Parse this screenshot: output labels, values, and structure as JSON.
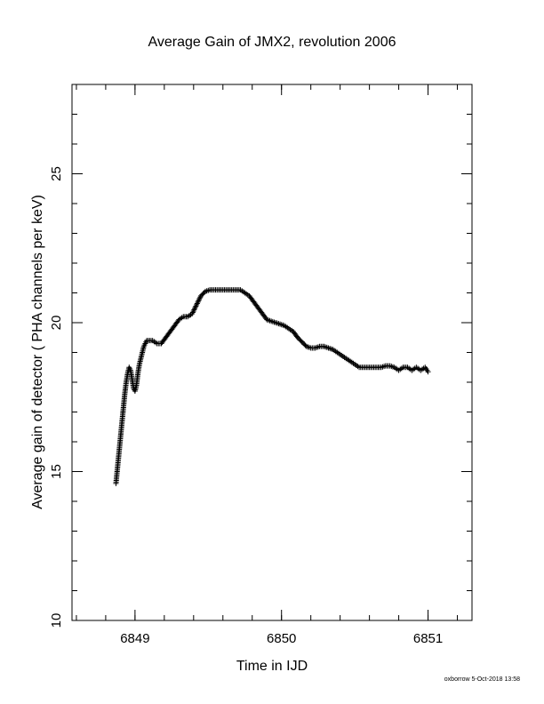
{
  "chart_data": {
    "type": "scatter",
    "title": "Average Gain of JMX2, revolution 2006",
    "xlabel": "Time in IJD",
    "ylabel": "Average gain of detector ( PHA channels per keV)",
    "xlim": [
      6848.57,
      6851.3
    ],
    "ylim": [
      10,
      28
    ],
    "x_ticks": [
      "6849",
      "6850",
      "6851"
    ],
    "y_ticks": [
      "10",
      "15",
      "20",
      "25"
    ],
    "x_minor_step": 0.2,
    "y_minor_step": 1,
    "marker": "plus",
    "grid": false,
    "series": [
      {
        "x": [
          6848.87,
          6848.88,
          6848.89,
          6848.9,
          6848.91,
          6848.92,
          6848.93,
          6848.94,
          6848.95,
          6848.96,
          6848.97,
          6848.98,
          6848.99,
          6849.0,
          6849.01,
          6849.02,
          6849.03,
          6849.04,
          6849.05,
          6849.06,
          6849.07,
          6849.08,
          6849.09,
          6849.1,
          6849.12,
          6849.15,
          6849.18,
          6849.21,
          6849.24,
          6849.27,
          6849.3,
          6849.33,
          6849.36,
          6849.39,
          6849.42,
          6849.45,
          6849.48,
          6849.51,
          6849.54,
          6849.57,
          6849.6,
          6849.63,
          6849.66,
          6849.69,
          6849.72,
          6849.75,
          6849.78,
          6849.81,
          6849.84,
          6849.87,
          6849.9,
          6849.93,
          6849.96,
          6849.99,
          6850.02,
          6850.05,
          6850.08,
          6850.11,
          6850.14,
          6850.17,
          6850.2,
          6850.23,
          6850.26,
          6850.29,
          6850.32,
          6850.35,
          6850.38,
          6850.41,
          6850.44,
          6850.47,
          6850.5,
          6850.53,
          6850.56,
          6850.59,
          6850.62,
          6850.65,
          6850.68,
          6850.71,
          6850.74,
          6850.77,
          6850.8,
          6850.83,
          6850.86,
          6850.89,
          6850.92,
          6850.95,
          6850.98,
          6851.0
        ],
        "y": [
          14.6,
          15.1,
          15.6,
          16.1,
          16.6,
          17.1,
          17.6,
          18.0,
          18.3,
          18.5,
          18.4,
          18.1,
          17.8,
          17.7,
          17.9,
          18.3,
          18.6,
          18.8,
          19.0,
          19.2,
          19.3,
          19.4,
          19.4,
          19.4,
          19.4,
          19.3,
          19.3,
          19.5,
          19.7,
          19.9,
          20.1,
          20.2,
          20.2,
          20.3,
          20.6,
          20.9,
          21.05,
          21.1,
          21.1,
          21.1,
          21.1,
          21.1,
          21.1,
          21.1,
          21.1,
          21.0,
          20.9,
          20.7,
          20.5,
          20.3,
          20.1,
          20.05,
          20.0,
          19.95,
          19.9,
          19.8,
          19.7,
          19.5,
          19.35,
          19.2,
          19.15,
          19.15,
          19.2,
          19.2,
          19.15,
          19.1,
          19.0,
          18.9,
          18.8,
          18.7,
          18.6,
          18.5,
          18.5,
          18.5,
          18.5,
          18.5,
          18.5,
          18.55,
          18.55,
          18.5,
          18.4,
          18.5,
          18.5,
          18.4,
          18.5,
          18.4,
          18.5,
          18.35
        ]
      }
    ]
  },
  "footer": "oxborrow  5-Oct-2018 13:58"
}
